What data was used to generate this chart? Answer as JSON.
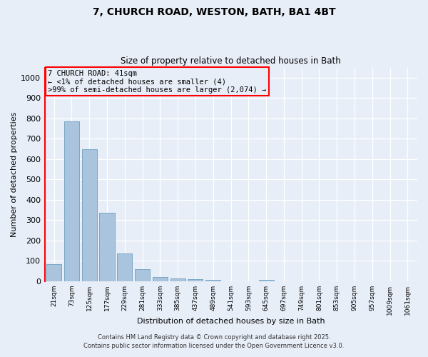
{
  "title1": "7, CHURCH ROAD, WESTON, BATH, BA1 4BT",
  "title2": "Size of property relative to detached houses in Bath",
  "xlabel": "Distribution of detached houses by size in Bath",
  "ylabel": "Number of detached properties",
  "bar_color": "#aac4de",
  "bar_edge_color": "#6a9fc0",
  "categories": [
    "21sqm",
    "73sqm",
    "125sqm",
    "177sqm",
    "229sqm",
    "281sqm",
    "333sqm",
    "385sqm",
    "437sqm",
    "489sqm",
    "541sqm",
    "593sqm",
    "645sqm",
    "697sqm",
    "749sqm",
    "801sqm",
    "853sqm",
    "905sqm",
    "957sqm",
    "1009sqm",
    "1061sqm"
  ],
  "values": [
    85,
    785,
    650,
    335,
    135,
    60,
    22,
    15,
    10,
    7,
    0,
    0,
    8,
    0,
    0,
    0,
    0,
    0,
    0,
    0,
    0
  ],
  "ylim": [
    0,
    1050
  ],
  "yticks": [
    0,
    100,
    200,
    300,
    400,
    500,
    600,
    700,
    800,
    900,
    1000
  ],
  "annotation_line1": "7 CHURCH ROAD: 41sqm",
  "annotation_line2": "← <1% of detached houses are smaller (4)",
  "annotation_line3": ">99% of semi-detached houses are larger (2,074) →",
  "footer1": "Contains HM Land Registry data © Crown copyright and database right 2025.",
  "footer2": "Contains public sector information licensed under the Open Government Licence v3.0.",
  "background_color": "#e8eef8",
  "grid_color": "#ffffff"
}
